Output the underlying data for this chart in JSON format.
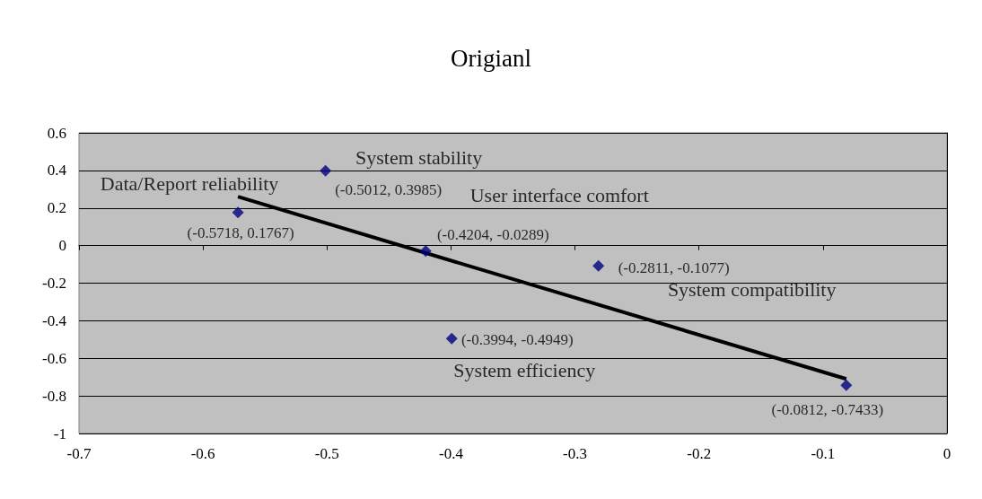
{
  "chart_data": {
    "type": "scatter",
    "title": "Origianl",
    "x": [
      -0.5718,
      -0.5012,
      -0.4204,
      -0.2811,
      -0.3994,
      -0.0812
    ],
    "series": [
      {
        "color": "#000080",
        "marker": "diamond",
        "values": [
          0.1767,
          0.3985,
          -0.0289,
          -0.1077,
          -0.4949,
          -0.7433
        ],
        "value_labels": [
          "(-0.5718, 0.1767)",
          "(-0.5012, 0.3985)",
          "(-0.4204, -0.0289)",
          "(-0.2811, -0.1077)",
          "(-0.3994, -0.4949)",
          "(-0.0812, -0.7433)"
        ]
      },
      {
        "type": "line",
        "color": "#000000",
        "marker": "none",
        "x": [
          -0.5718,
          -0.0812
        ],
        "values": [
          0.26,
          -0.71
        ]
      }
    ],
    "annotations": [
      "Data/Report reliability",
      "System stability",
      "User interface comfort",
      "System compatibility",
      "System efficiency"
    ],
    "xlim": [
      -0.7,
      0
    ],
    "xticks": [
      -0.7,
      -0.6,
      -0.5,
      -0.4,
      -0.3,
      -0.2,
      -0.1,
      0
    ],
    "ylim": [
      -1,
      0.6
    ],
    "yticks": [
      -1,
      -0.8,
      -0.6,
      -0.4,
      -0.2,
      0,
      0.2,
      0.4,
      0.6
    ],
    "grid": "y"
  }
}
